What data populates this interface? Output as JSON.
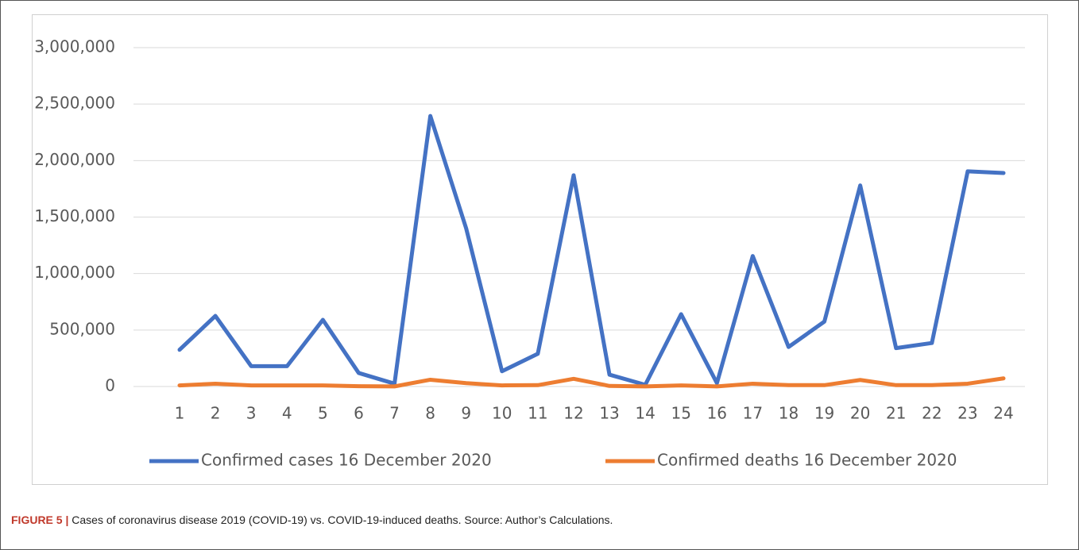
{
  "chart_data": {
    "type": "line",
    "caption_label": "FIGURE 5 |",
    "caption": "Cases of coronavirus disease 2019 (COVID-19) vs. COVID-19-induced deaths. Source: Author’s Calculations.",
    "categories": [
      "1",
      "2",
      "3",
      "4",
      "5",
      "6",
      "7",
      "8",
      "9",
      "10",
      "11",
      "12",
      "13",
      "14",
      "15",
      "16",
      "17",
      "18",
      "19",
      "20",
      "21",
      "22",
      "23",
      "24"
    ],
    "series": [
      {
        "name": "Confirmed cases 16 December 2020",
        "color": "#4472c4",
        "values": [
          325000,
          625000,
          180000,
          180000,
          590000,
          120000,
          25000,
          2395000,
          1400000,
          135000,
          290000,
          1870000,
          105000,
          15000,
          640000,
          30000,
          1155000,
          350000,
          575000,
          1780000,
          340000,
          385000,
          1905000,
          1890000
        ]
      },
      {
        "name": "Confirmed deaths 16 December 2020",
        "color": "#ed7d31",
        "values": [
          10000,
          25000,
          10000,
          10000,
          10000,
          3000,
          1000,
          60000,
          30000,
          10000,
          12000,
          68000,
          5000,
          1000,
          10000,
          1000,
          25000,
          12000,
          12000,
          58000,
          12000,
          12000,
          25000,
          72000
        ]
      }
    ],
    "ylim": [
      0,
      3000000
    ],
    "yticks": [
      0,
      {
        "value": 500000,
        "label": "500,000"
      },
      {
        "value": 1000000,
        "label": "1,000,000"
      },
      {
        "value": 1500000,
        "label": "1,500,000"
      },
      {
        "value": 2000000,
        "label": "2,000,000"
      },
      {
        "value": 2500000,
        "label": "2,500,000"
      },
      {
        "value": 3000000,
        "label": "3,000,000"
      }
    ],
    "grid": true
  }
}
